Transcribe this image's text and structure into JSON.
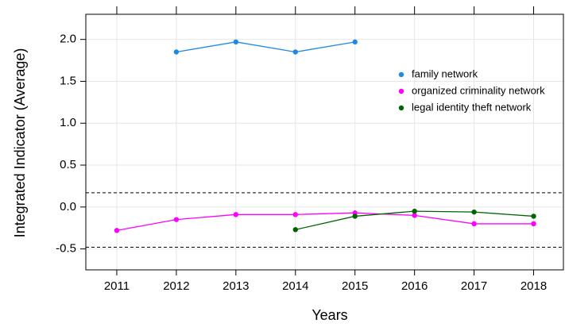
{
  "chart_data": {
    "type": "line",
    "xlabel": "Years",
    "ylabel": "Integrated Indicator (Average)",
    "x": [
      2011,
      2012,
      2013,
      2014,
      2015,
      2016,
      2017,
      2018
    ],
    "series": [
      {
        "name": "family network",
        "color": "#1E88E5",
        "values": [
          null,
          1.85,
          1.97,
          1.85,
          1.97,
          null,
          null,
          null
        ]
      },
      {
        "name": "organized criminality network",
        "color": "#FF00FF",
        "values": [
          -0.28,
          -0.15,
          -0.09,
          -0.09,
          -0.07,
          -0.1,
          -0.2,
          -0.2
        ]
      },
      {
        "name": "legal identity theft network",
        "color": "#006400",
        "values": [
          null,
          null,
          null,
          -0.27,
          -0.11,
          -0.05,
          -0.06,
          -0.11
        ]
      }
    ],
    "xlim": [
      2010.48,
      2018.5
    ],
    "xticks": [
      2011,
      2012,
      2013,
      2014,
      2015,
      2016,
      2017,
      2018
    ],
    "ylim": [
      -0.75,
      2.3
    ],
    "yticks": [
      {
        "value": -0.5,
        "label": "-0.5"
      },
      {
        "value": 0,
        "label": "0.0"
      },
      0.5,
      {
        "value": 1,
        "label": "1.0"
      },
      1.5,
      {
        "value": 2,
        "label": "2.0"
      }
    ],
    "hlines": [
      0.17,
      -0.48
    ],
    "grid": true,
    "legend": "upper right"
  }
}
